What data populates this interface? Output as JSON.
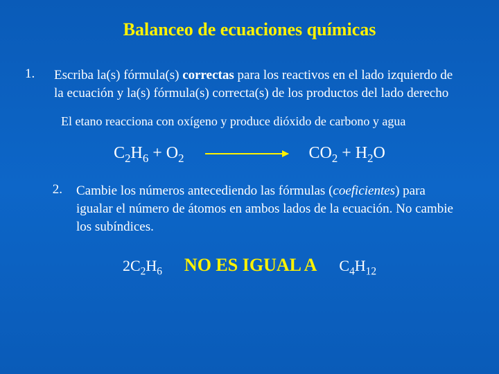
{
  "colors": {
    "background_top": "#0a5bb8",
    "background_mid": "#0d66c8",
    "accent_yellow": "#fff200",
    "text_white": "#ffffff"
  },
  "title": "Balanceo de ecuaciones químicas",
  "item1": {
    "num": "1.",
    "text_pre": "Escriba la(s) fórmula(s) ",
    "text_bold": "correctas",
    "text_post": " para los reactivos en el lado izquierdo de la ecuación y la(s) fórmula(s) correcta(s) de los productos del lado derecho"
  },
  "reaction_desc": "El etano reacciona con oxígeno y produce dióxido de carbono  y agua",
  "equation": {
    "left_c2h6": "C",
    "left_plus": " + O",
    "right_co2": "CO",
    "right_plus": " + H",
    "right_o": "O"
  },
  "item2": {
    "num": "2.",
    "text_pre": "Cambie los números antecediendo las fórmulas (",
    "text_italic": "coeficientes",
    "text_post": ") para igualar el número de átomos en ambos lados de la ecuación. No cambie los subíndices."
  },
  "comparison": {
    "left": "2C",
    "warning": "NO ES IGUAL A",
    "right": "C"
  }
}
